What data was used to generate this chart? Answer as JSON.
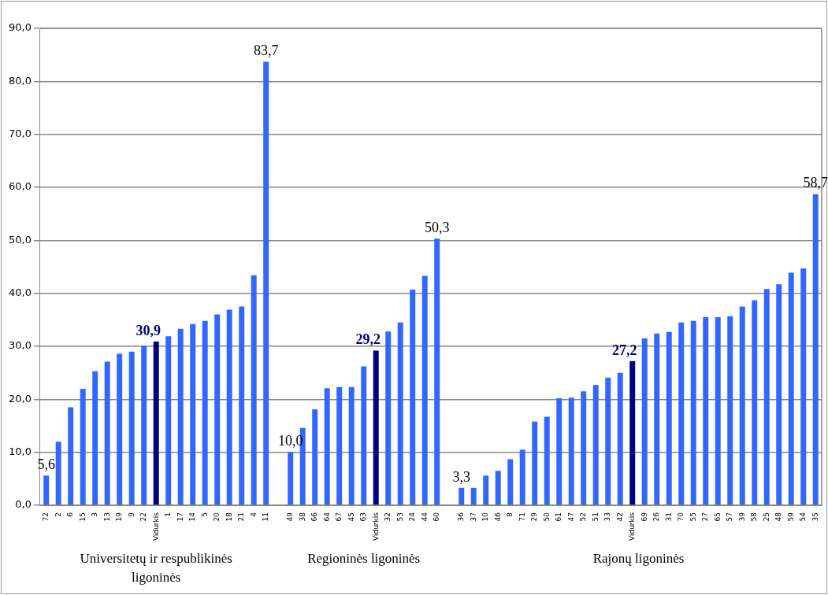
{
  "chart_data": {
    "type": "bar",
    "categories": [
      "72",
      "2",
      "6",
      "15",
      "3",
      "13",
      "19",
      "9",
      "22",
      "Vidurkis",
      "1",
      "17",
      "14",
      "5",
      "20",
      "18",
      "21",
      "4",
      "11",
      null,
      "49",
      "38",
      "66",
      "64",
      "67",
      "45",
      "63",
      "Vidurkis",
      "32",
      "53",
      "24",
      "44",
      "60",
      null,
      "36",
      "37",
      "10",
      "46",
      "8",
      "71",
      "29",
      "50",
      "61",
      "47",
      "52",
      "51",
      "33",
      "42",
      "Vidurkis",
      "69",
      "26",
      "31",
      "70",
      "55",
      "27",
      "65",
      "57",
      "39",
      "58",
      "25",
      "48",
      "59",
      "54",
      "35"
    ],
    "values": [
      5.6,
      12.0,
      18.5,
      22.0,
      25.3,
      27.1,
      28.6,
      29.0,
      30.1,
      30.9,
      31.9,
      33.3,
      34.2,
      34.8,
      36.0,
      36.9,
      37.5,
      43.4,
      83.7,
      null,
      10.0,
      14.6,
      18.1,
      22.1,
      22.3,
      22.3,
      26.2,
      29.2,
      32.8,
      34.5,
      40.7,
      43.3,
      50.3,
      null,
      3.3,
      3.3,
      5.6,
      6.5,
      8.7,
      10.5,
      15.8,
      16.7,
      20.2,
      20.3,
      21.5,
      22.7,
      24.1,
      25.0,
      27.2,
      31.5,
      32.4,
      32.7,
      34.5,
      34.8,
      35.5,
      35.5,
      35.7,
      37.5,
      38.7,
      40.8,
      41.7,
      43.9,
      44.7,
      58.7
    ],
    "color": "#3366ff",
    "colors": [
      "#3366ff",
      "#3366ff",
      "#3366ff",
      "#3366ff",
      "#3366ff",
      "#3366ff",
      "#3366ff",
      "#3366ff",
      "#3366ff",
      "#000080",
      "#3366ff",
      "#3366ff",
      "#3366ff",
      "#3366ff",
      "#3366ff",
      "#3366ff",
      "#3366ff",
      "#3366ff",
      "#3366ff",
      "#3366ff",
      "#3366ff",
      "#3366ff",
      "#3366ff",
      "#3366ff",
      "#3366ff",
      "#3366ff",
      "#3366ff",
      "#000080",
      "#3366ff",
      "#3366ff",
      "#3366ff",
      "#3366ff",
      "#3366ff",
      "#3366ff",
      "#3366ff",
      "#3366ff",
      "#3366ff",
      "#3366ff",
      "#3366ff",
      "#3366ff",
      "#3366ff",
      "#3366ff",
      "#3366ff",
      "#3366ff",
      "#3366ff",
      "#3366ff",
      "#3366ff",
      "#3366ff",
      "#000080",
      "#3366ff",
      "#3366ff",
      "#3366ff",
      "#3366ff",
      "#3366ff",
      "#3366ff",
      "#3366ff",
      "#3366ff",
      "#3366ff",
      "#3366ff",
      "#3366ff",
      "#3366ff",
      "#3366ff",
      "#3366ff",
      "#3366ff"
    ],
    "value_labels": [
      "5,6",
      null,
      null,
      null,
      null,
      null,
      null,
      null,
      null,
      "30,9",
      null,
      null,
      null,
      null,
      null,
      null,
      null,
      null,
      "83,7",
      null,
      "10,0",
      null,
      null,
      null,
      null,
      null,
      null,
      "29,2",
      null,
      null,
      null,
      null,
      "50,3",
      null,
      "3,3",
      null,
      null,
      null,
      null,
      null,
      null,
      null,
      null,
      null,
      null,
      null,
      null,
      null,
      "27,2",
      null,
      null,
      null,
      null,
      null,
      null,
      null,
      null,
      null,
      null,
      null,
      null,
      null,
      null,
      "58,7"
    ],
    "ylim": [
      0,
      90
    ],
    "yticks": [
      {
        "value": 0,
        "label": "0,0"
      },
      {
        "value": 10,
        "label": "10,0"
      },
      {
        "value": 20,
        "label": "20,0"
      },
      {
        "value": 30,
        "label": "30,0"
      },
      {
        "value": 40,
        "label": "40,0"
      },
      {
        "value": 50,
        "label": "50,0"
      },
      {
        "value": 60,
        "label": "60,0"
      },
      {
        "value": 70,
        "label": "70,0"
      },
      {
        "value": 80,
        "label": "80,0"
      },
      {
        "value": 90,
        "label": "90,0"
      }
    ],
    "grid": "y",
    "annotations": [
      "Universitetų ir respublikinės ligoninės",
      "Regioninės ligoninės",
      "Rajonų ligoninės"
    ]
  }
}
